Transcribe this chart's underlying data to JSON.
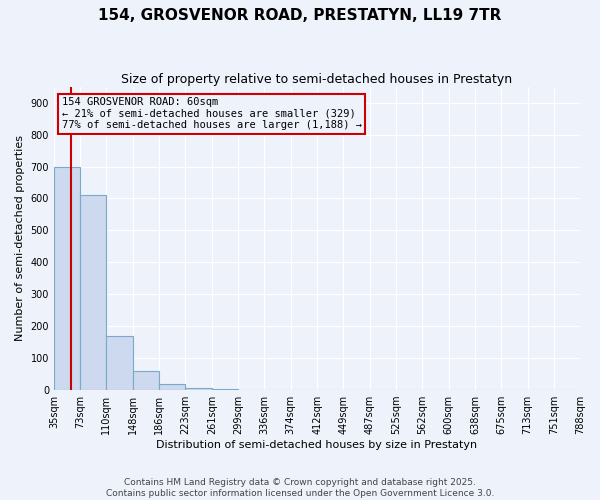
{
  "title": "154, GROSVENOR ROAD, PRESTATYN, LL19 7TR",
  "subtitle": "Size of property relative to semi-detached houses in Prestatyn",
  "xlabel": "Distribution of semi-detached houses by size in Prestatyn",
  "ylabel": "Number of semi-detached properties",
  "bar_color": "#ccd9ee",
  "bar_edge_color": "#7aaac8",
  "background_color": "#eef2fb",
  "grid_color": "#ffffff",
  "bin_edges": [
    35,
    73,
    110,
    148,
    186,
    223,
    261,
    299,
    336,
    374,
    412,
    449,
    487,
    525,
    562,
    600,
    638,
    675,
    713,
    751,
    788
  ],
  "bin_labels": [
    "35sqm",
    "73sqm",
    "110sqm",
    "148sqm",
    "186sqm",
    "223sqm",
    "261sqm",
    "299sqm",
    "336sqm",
    "374sqm",
    "412sqm",
    "449sqm",
    "487sqm",
    "525sqm",
    "562sqm",
    "600sqm",
    "638sqm",
    "675sqm",
    "713sqm",
    "751sqm",
    "788sqm"
  ],
  "bar_heights": [
    700,
    610,
    170,
    60,
    18,
    8,
    3,
    0,
    0,
    0,
    0,
    0,
    0,
    0,
    0,
    0,
    0,
    0,
    0,
    0
  ],
  "property_size": 60,
  "red_line_color": "#cc0000",
  "annotation_line1": "154 GROSVENOR ROAD: 60sqm",
  "annotation_line2": "← 21% of semi-detached houses are smaller (329)",
  "annotation_line3": "77% of semi-detached houses are larger (1,188) →",
  "annotation_box_color": "#cc0000",
  "ylim": [
    0,
    950
  ],
  "yticks": [
    0,
    100,
    200,
    300,
    400,
    500,
    600,
    700,
    800,
    900
  ],
  "figsize": [
    6.0,
    5.0
  ],
  "dpi": 100,
  "footer_text": "Contains HM Land Registry data © Crown copyright and database right 2025.\nContains public sector information licensed under the Open Government Licence 3.0.",
  "footer_fontsize": 6.5,
  "title_fontsize": 11,
  "subtitle_fontsize": 9,
  "axis_fontsize": 8,
  "tick_fontsize": 7,
  "annotation_fontsize": 7.5
}
